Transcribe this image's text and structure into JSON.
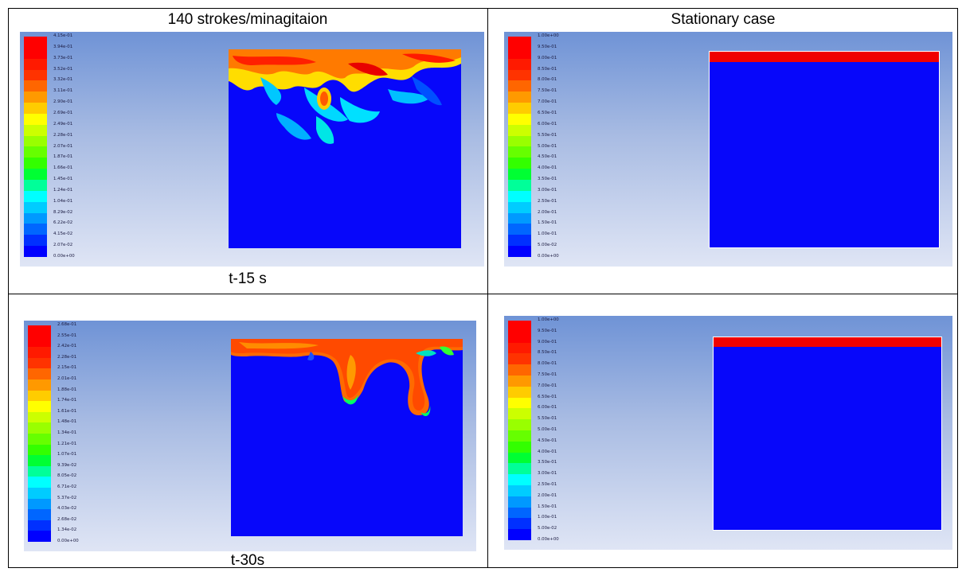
{
  "header": {
    "left_title": "140 strokes/minagitaion",
    "right_title": "Stationary case"
  },
  "captions": {
    "row1": "t-15 s",
    "row2": "t-30s"
  },
  "colors": {
    "colormap": [
      "#0000ff",
      "#0030ff",
      "#0066ff",
      "#0099ff",
      "#00ccff",
      "#00ffff",
      "#00ff99",
      "#00ff33",
      "#33ff00",
      "#66ff00",
      "#99ff00",
      "#ccff00",
      "#ffff00",
      "#ffcc00",
      "#ff9900",
      "#ff6600",
      "#ff3300",
      "#ff1a00",
      "#ff0000",
      "#ff0000"
    ],
    "domain_fill": "#0707fa",
    "interface_red": "#f00000",
    "background_top": "#6f93d6",
    "background_bottom": "#dfe5f5"
  },
  "panels": {
    "p1": {
      "legend": [
        "4.15e-01",
        "3.94e-01",
        "3.73e-01",
        "3.52e-01",
        "3.32e-01",
        "3.11e-01",
        "2.90e-01",
        "2.69e-01",
        "2.49e-01",
        "2.28e-01",
        "2.07e-01",
        "1.87e-01",
        "1.66e-01",
        "1.45e-01",
        "1.24e-01",
        "1.04e-01",
        "8.29e-02",
        "6.22e-02",
        "4.15e-02",
        "2.07e-02",
        "0.00e+00"
      ]
    },
    "p2": {
      "legend": [
        "1.00e+00",
        "9.50e-01",
        "9.00e-01",
        "8.50e-01",
        "8.00e-01",
        "7.50e-01",
        "7.00e-01",
        "6.50e-01",
        "6.00e-01",
        "5.50e-01",
        "5.00e-01",
        "4.50e-01",
        "4.00e-01",
        "3.50e-01",
        "3.00e-01",
        "2.50e-01",
        "2.00e-01",
        "1.50e-01",
        "1.00e-01",
        "5.00e-02",
        "0.00e+00"
      ]
    },
    "p3": {
      "legend": [
        "2.68e-01",
        "2.55e-01",
        "2.42e-01",
        "2.28e-01",
        "2.15e-01",
        "2.01e-01",
        "1.88e-01",
        "1.74e-01",
        "1.61e-01",
        "1.48e-01",
        "1.34e-01",
        "1.21e-01",
        "1.07e-01",
        "9.39e-02",
        "8.05e-02",
        "6.71e-02",
        "5.37e-02",
        "4.03e-02",
        "2.68e-02",
        "1.34e-02",
        "0.00e+00"
      ]
    },
    "p4": {
      "legend": [
        "1.00e+00",
        "9.50e-01",
        "9.00e-01",
        "8.50e-01",
        "8.00e-01",
        "7.50e-01",
        "7.00e-01",
        "6.50e-01",
        "6.00e-01",
        "5.50e-01",
        "5.00e-01",
        "4.50e-01",
        "4.00e-01",
        "3.50e-01",
        "3.00e-01",
        "2.50e-01",
        "2.00e-01",
        "1.50e-01",
        "1.00e-01",
        "5.00e-02",
        "0.00e+00"
      ]
    }
  }
}
